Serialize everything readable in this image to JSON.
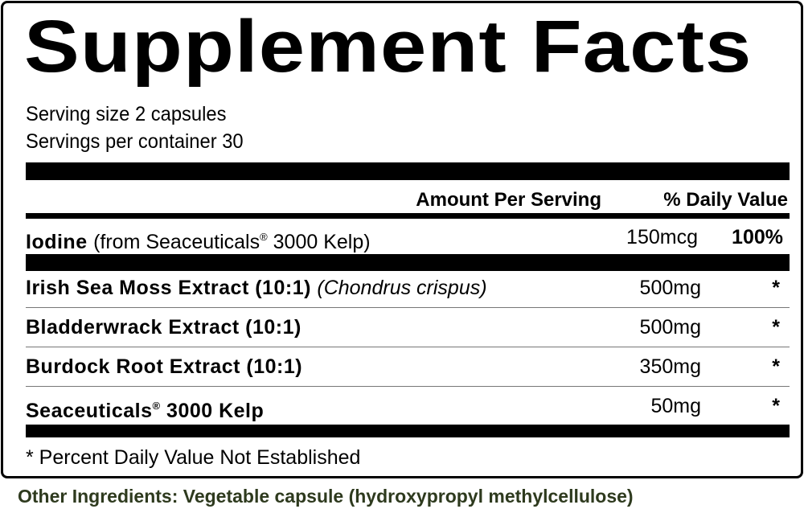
{
  "title": "Supplement Facts",
  "serving_size": "Serving size 2 capsules",
  "servings_per_container": "Servings per container 30",
  "header": {
    "amount": "Amount Per Serving",
    "daily_value": "% Daily Value"
  },
  "iodine": {
    "name": "Iodine",
    "source": "(from Seaceuticals",
    "reg": "®",
    "source_rest": " 3000 Kelp)",
    "amount": "150mcg",
    "dv": "100%"
  },
  "ingredients": [
    {
      "name": "Irish Sea Moss Extract (10:1)",
      "latin": "(Chondrus crispus)",
      "amount": "500mg",
      "dv": "*"
    },
    {
      "name": "Bladderwrack Extract (10:1)",
      "amount": "500mg",
      "dv": "*"
    },
    {
      "name": "Burdock Root Extract (10:1)",
      "amount": "350mg",
      "dv": "*"
    },
    {
      "name": "Seaceuticals",
      "reg": "®",
      "name_rest": " 3000 Kelp",
      "amount": "50mg",
      "dv": "*"
    }
  ],
  "footnote": "* Percent Daily Value Not Established",
  "other_ingredients": "Other Ingredients: Vegetable capsule (hydroxypropyl methylcellulose)",
  "colors": {
    "other_ingredients_text": "#2e3a1e",
    "rules": "#000000"
  }
}
